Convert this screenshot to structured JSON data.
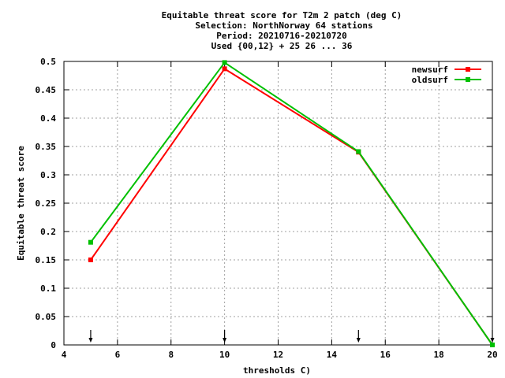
{
  "chart_data": {
    "type": "line",
    "title_lines": [
      "Equitable threat score  for T2m 2 patch (deg C)",
      "Selection: NorthNorway     64 stations",
      "Period: 20210716-20210720",
      "Used {00,12} + 25 26 ... 36"
    ],
    "xlabel": "thresholds C)",
    "ylabel": "Equitable threat score",
    "xlim": [
      4,
      20
    ],
    "ylim": [
      0,
      0.5
    ],
    "xticks": [
      4,
      6,
      8,
      10,
      12,
      14,
      16,
      18,
      20
    ],
    "yticks": [
      0,
      0.05,
      0.1,
      0.15,
      0.2,
      0.25,
      0.3,
      0.35,
      0.4,
      0.45,
      0.5
    ],
    "ytick_labels": [
      "0",
      "0.05",
      "0.1",
      "0.15",
      "0.2",
      "0.25",
      "0.3",
      "0.35",
      "0.4",
      "0.45",
      "0.5"
    ],
    "grid": true,
    "legend_position": "top-right",
    "series": [
      {
        "name": "newsurf",
        "color": "#ff0000",
        "x": [
          5,
          10,
          15,
          20
        ],
        "y": [
          0.15,
          0.487,
          0.34,
          0.0
        ]
      },
      {
        "name": "oldsurf",
        "color": "#00c000",
        "x": [
          5,
          10,
          15,
          20
        ],
        "y": [
          0.181,
          0.498,
          0.341,
          0.0
        ]
      }
    ],
    "threshold_markers": [
      5,
      10,
      15,
      20
    ]
  }
}
